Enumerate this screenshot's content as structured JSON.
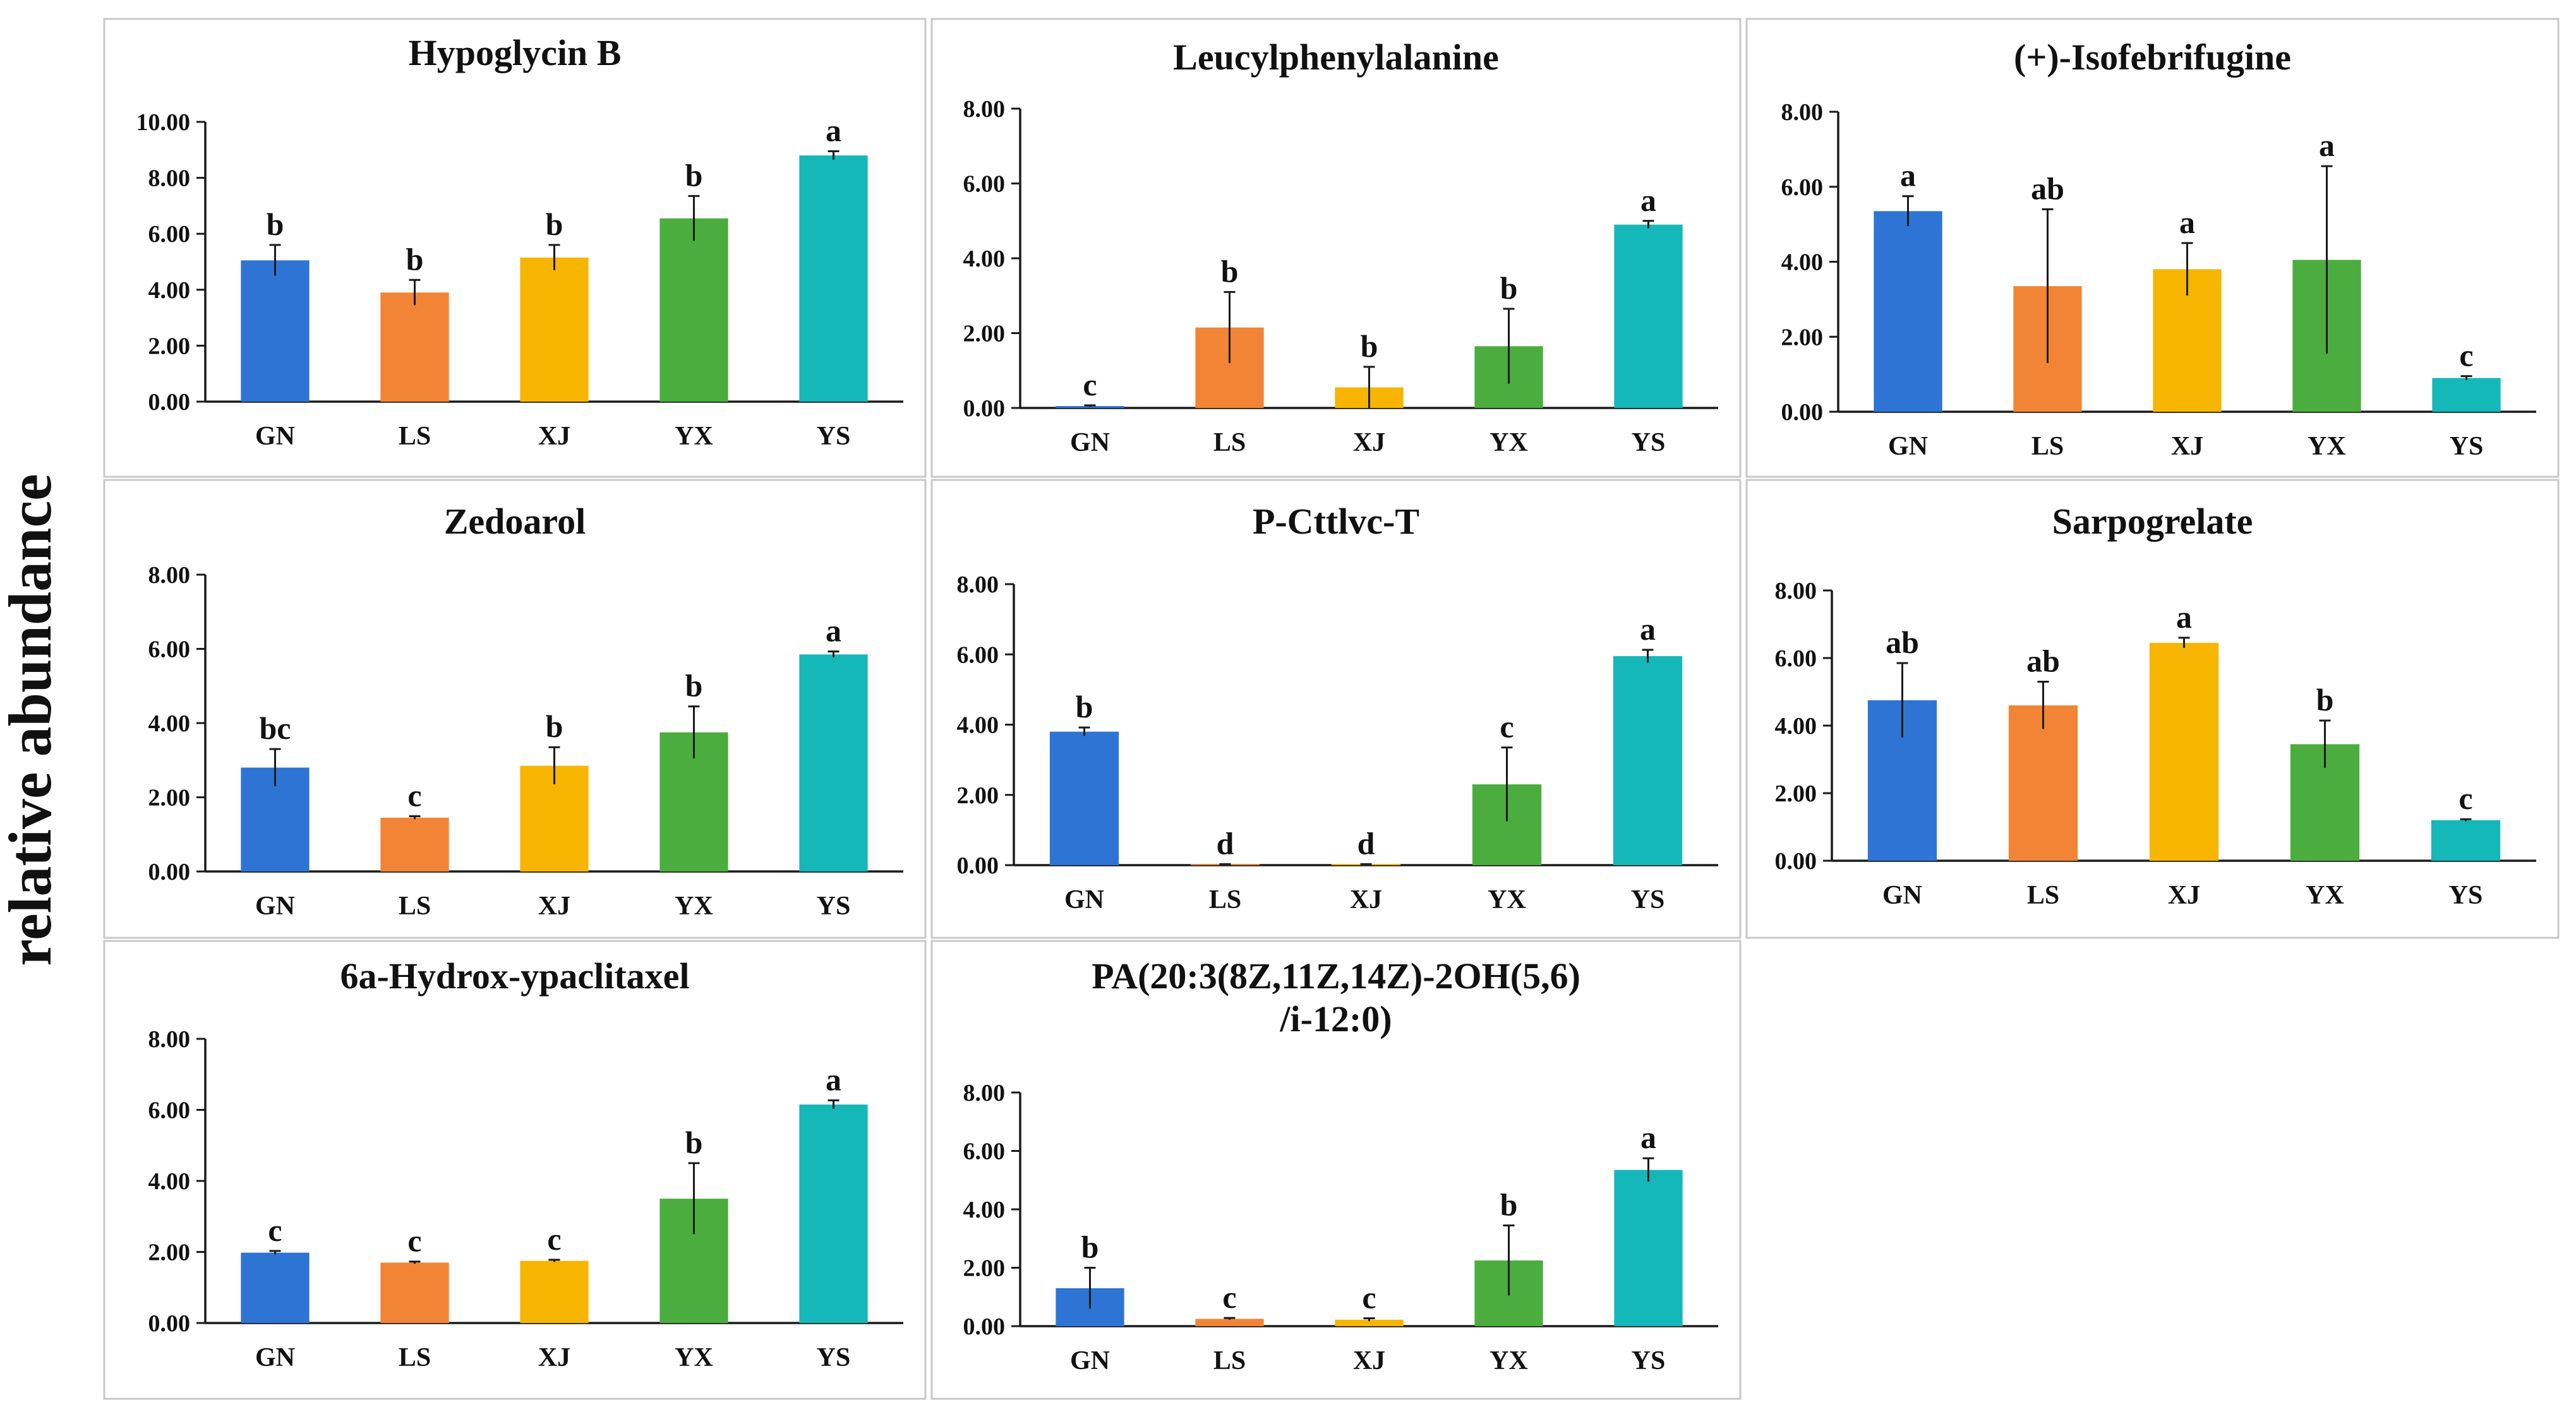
{
  "chart_data": {
    "type": "bar",
    "ylabel": "relative abundance",
    "categories": [
      "GN",
      "LS",
      "XJ",
      "YX",
      "YS"
    ],
    "colors": [
      "#2e74d4",
      "#f28535",
      "#f7b500",
      "#4bad3e",
      "#14b8b8"
    ],
    "panels": [
      {
        "title": "Hypoglycin B",
        "ylim": [
          0,
          10
        ],
        "yticks": [
          "0.00",
          "2.00",
          "4.00",
          "6.00",
          "8.00",
          "10.00"
        ],
        "values": [
          5.05,
          3.9,
          5.15,
          6.55,
          8.8
        ],
        "errors": [
          0.55,
          0.45,
          0.45,
          0.8,
          0.15
        ],
        "significance": [
          "b",
          "b",
          "b",
          "b",
          "a"
        ]
      },
      {
        "title": "Leucylphenylalanine",
        "ylim": [
          0,
          8
        ],
        "yticks": [
          "0.00",
          "2.00",
          "4.00",
          "6.00",
          "8.00"
        ],
        "values": [
          0.05,
          2.15,
          0.55,
          1.65,
          4.9
        ],
        "errors": [
          0.02,
          0.95,
          0.55,
          1.0,
          0.1
        ],
        "significance": [
          "c",
          "b",
          "b",
          "b",
          "a"
        ]
      },
      {
        "title": "(+)-Isofebrifugine",
        "ylim": [
          0,
          8
        ],
        "yticks": [
          "0.00",
          "2.00",
          "4.00",
          "6.00",
          "8.00"
        ],
        "values": [
          5.35,
          3.35,
          3.8,
          4.05,
          0.9
        ],
        "errors": [
          0.4,
          2.05,
          0.7,
          2.5,
          0.05
        ],
        "significance": [
          "a",
          "ab",
          "a",
          "a",
          "c"
        ]
      },
      {
        "title": "Zedoarol",
        "ylim": [
          0,
          8
        ],
        "yticks": [
          "0.00",
          "2.00",
          "4.00",
          "6.00",
          "8.00"
        ],
        "values": [
          2.8,
          1.45,
          2.85,
          3.75,
          5.85
        ],
        "errors": [
          0.5,
          0.04,
          0.5,
          0.7,
          0.08
        ],
        "significance": [
          "bc",
          "c",
          "b",
          "b",
          "a"
        ]
      },
      {
        "title": "P-Cttlvc-T",
        "ylim": [
          0,
          8
        ],
        "yticks": [
          "0.00",
          "2.00",
          "4.00",
          "6.00",
          "8.00"
        ],
        "values": [
          3.8,
          0.02,
          0.02,
          2.3,
          5.95
        ],
        "errors": [
          0.12,
          0.01,
          0.01,
          1.05,
          0.18
        ],
        "significance": [
          "b",
          "d",
          "d",
          "c",
          "a"
        ]
      },
      {
        "title": "Sarpogrelate",
        "ylim": [
          0,
          8
        ],
        "yticks": [
          "0.00",
          "2.00",
          "4.00",
          "6.00",
          "8.00"
        ],
        "values": [
          4.75,
          4.6,
          6.45,
          3.45,
          1.2
        ],
        "errors": [
          1.1,
          0.7,
          0.15,
          0.7,
          0.03
        ],
        "significance": [
          "ab",
          "ab",
          "a",
          "b",
          "c"
        ]
      },
      {
        "title": "6a-Hydrox-ypaclitaxel",
        "ylim": [
          0,
          8
        ],
        "yticks": [
          "0.00",
          "2.00",
          "4.00",
          "6.00",
          "8.00"
        ],
        "values": [
          1.98,
          1.7,
          1.75,
          3.5,
          6.15
        ],
        "errors": [
          0.05,
          0.03,
          0.03,
          1.0,
          0.12
        ],
        "significance": [
          "c",
          "c",
          "c",
          "b",
          "a"
        ]
      },
      {
        "title": "PA(20:3(8Z,11Z,14Z)-2OH(5,6)/i-12:0)",
        "title_lines": [
          "PA(20:3(8Z,11Z,14Z)-2OH(5,6)",
          "/i-12:0)"
        ],
        "ylim": [
          0,
          8
        ],
        "yticks": [
          "0.00",
          "2.00",
          "4.00",
          "6.00",
          "8.00"
        ],
        "values": [
          1.3,
          0.25,
          0.22,
          2.25,
          5.35
        ],
        "errors": [
          0.7,
          0.03,
          0.05,
          1.2,
          0.4
        ],
        "significance": [
          "b",
          "c",
          "c",
          "b",
          "a"
        ]
      }
    ]
  }
}
